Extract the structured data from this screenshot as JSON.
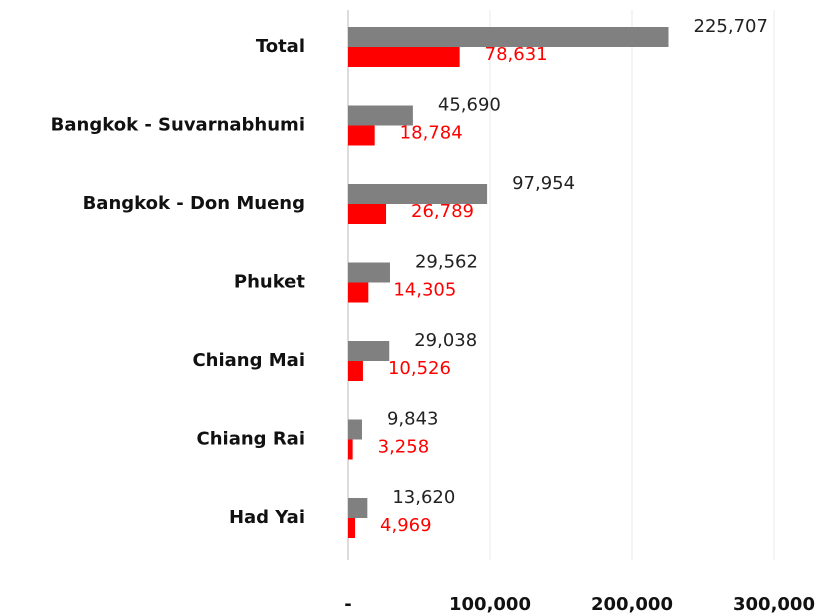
{
  "chart_data": {
    "type": "hbar",
    "categories": [
      "Total",
      "Bangkok - Suvarnabhumi",
      "Bangkok - Don Mueng",
      "Phuket",
      "Chiang Mai",
      "Chiang Rai",
      "Had Yai"
    ],
    "series": [
      {
        "color": "#808080",
        "label_color": "#222222",
        "values": [
          225707,
          45690,
          97954,
          29562,
          29038,
          9843,
          13620
        ],
        "value_labels": [
          "225,707",
          "45,690",
          "97,954",
          "29,562",
          "29,038",
          "9,843",
          "13,620"
        ]
      },
      {
        "color": "#ff0000",
        "label_color": "#ff0000",
        "values": [
          78631,
          18784,
          26789,
          14305,
          10526,
          3258,
          4969
        ],
        "value_labels": [
          "78,631",
          "18,784",
          "26,789",
          "14,305",
          "10,526",
          "3,258",
          "4,969"
        ]
      }
    ],
    "xlim": [
      0,
      300000
    ],
    "xticks": [
      {
        "value": 0,
        "label": "-"
      },
      {
        "value": 100000,
        "label": "100,000"
      },
      {
        "value": 200000,
        "label": "200,000"
      },
      {
        "value": 300000,
        "label": "300,000"
      }
    ],
    "grid": true
  }
}
